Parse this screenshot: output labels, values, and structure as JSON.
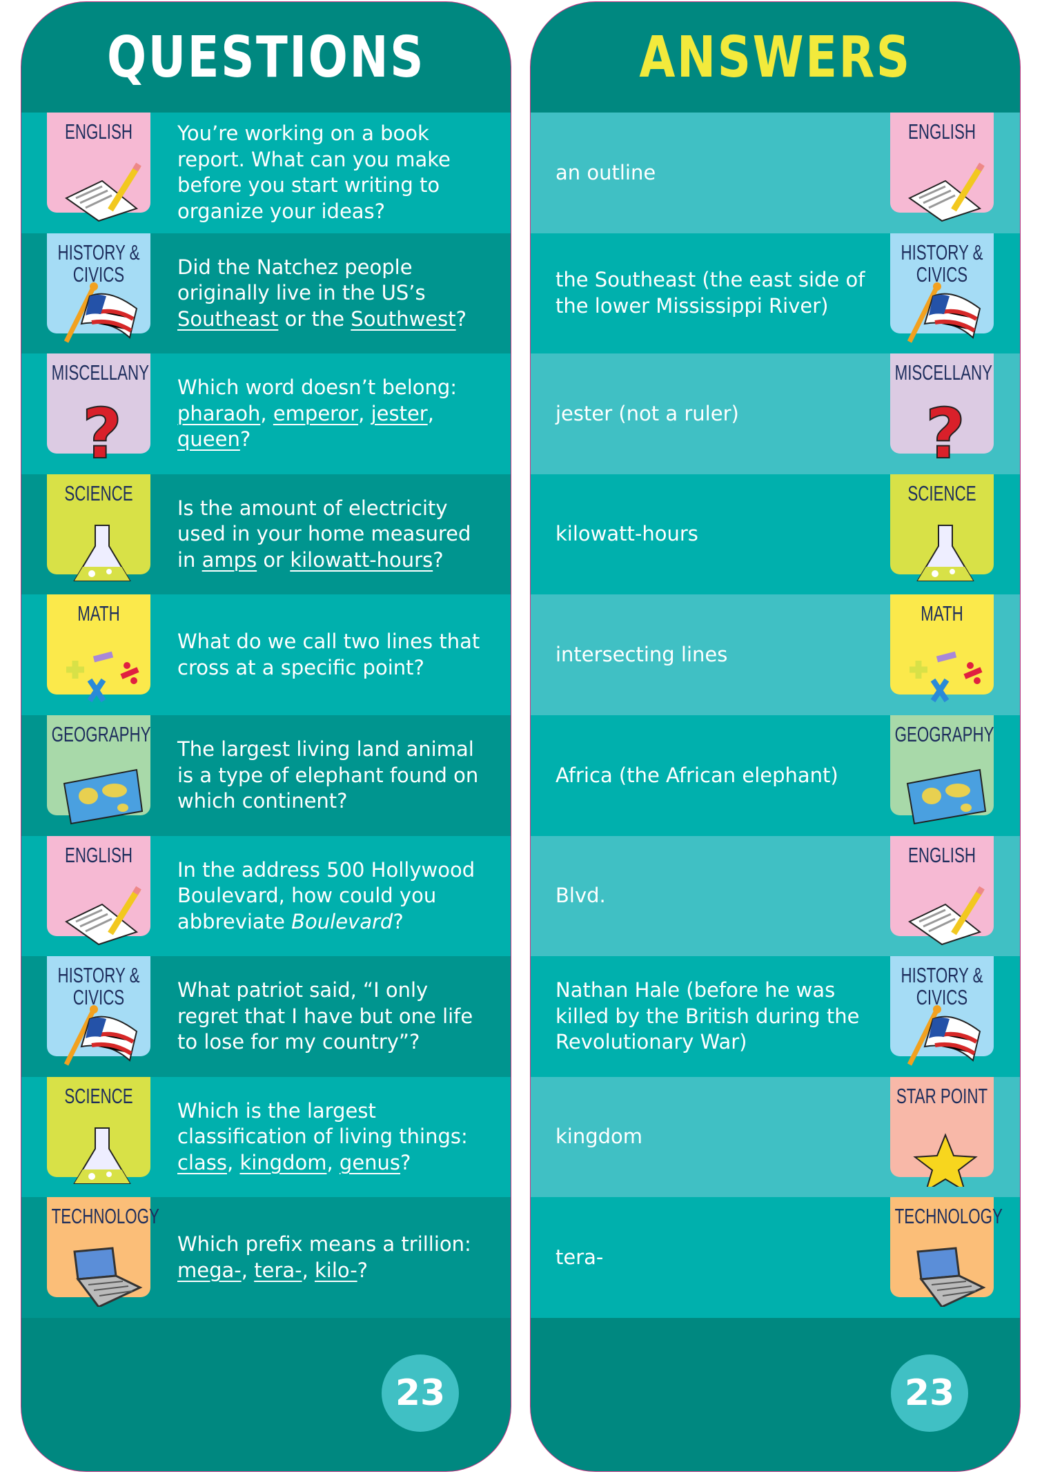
{
  "questions_title": "QUESTIONS",
  "answers_title": "ANSWERS",
  "page_number": "23",
  "colors": {
    "header": "#008880",
    "row_light": "#00b0ad",
    "row_dark": "#00958f",
    "answer_row_light": "#40c0c4",
    "answers_title": "#f2ea3c",
    "label": "#1d2d5c"
  },
  "categories": {
    "english": {
      "label": "ENGLISH",
      "color": "#f6b9d3",
      "icon": "paper-pencil-icon"
    },
    "history": {
      "label": "HISTORY & CIVICS",
      "color": "#a5dcf5",
      "icon": "us-flag-icon"
    },
    "misc": {
      "label": "MISCELLANY",
      "color": "#dccbe3",
      "icon": "question-mark-icon"
    },
    "science": {
      "label": "SCIENCE",
      "color": "#d8e147",
      "icon": "flask-icon"
    },
    "math": {
      "label": "MATH",
      "color": "#fbe94b",
      "icon": "math-symbols-icon"
    },
    "geography": {
      "label": "GEOGRAPHY",
      "color": "#a8d9a9",
      "icon": "world-map-icon"
    },
    "technology": {
      "label": "TECHNOLOGY",
      "color": "#fbbe78",
      "icon": "laptop-icon"
    },
    "star": {
      "label": "STAR POINT",
      "color": "#f8b8a8",
      "icon": "star-icon"
    }
  },
  "questions": [
    {
      "category": "english",
      "parts": [
        {
          "t": "You’re working on a book report. What can you make before you start writing to organize your ideas?"
        }
      ]
    },
    {
      "category": "history",
      "parts": [
        {
          "t": "Did the Natchez people originally live in the US’s "
        },
        {
          "t": "Southeast",
          "u": true
        },
        {
          "t": " or the "
        },
        {
          "t": "Southwest",
          "u": true
        },
        {
          "t": "?"
        }
      ]
    },
    {
      "category": "misc",
      "parts": [
        {
          "t": "Which word doesn’t belong: "
        },
        {
          "t": "pharaoh",
          "u": true
        },
        {
          "t": ", "
        },
        {
          "t": "emperor",
          "u": true
        },
        {
          "t": ", "
        },
        {
          "t": "jester",
          "u": true
        },
        {
          "t": ", "
        },
        {
          "t": "queen",
          "u": true
        },
        {
          "t": "?"
        }
      ]
    },
    {
      "category": "science",
      "parts": [
        {
          "t": "Is the amount of electricity used in your home measured in "
        },
        {
          "t": "amps",
          "u": true
        },
        {
          "t": " or "
        },
        {
          "t": "kilowatt-hours",
          "u": true
        },
        {
          "t": "?"
        }
      ]
    },
    {
      "category": "math",
      "parts": [
        {
          "t": "What do we call two lines that cross at a specific point?"
        }
      ]
    },
    {
      "category": "geography",
      "parts": [
        {
          "t": "The largest living land animal is a type of elephant found on which continent?"
        }
      ]
    },
    {
      "category": "english",
      "parts": [
        {
          "t": "In the address 500 Hollywood Boulevard, how could you abbreviate "
        },
        {
          "t": "Boulevard",
          "i": true
        },
        {
          "t": "?"
        }
      ]
    },
    {
      "category": "history",
      "parts": [
        {
          "t": "What patriot said, “I only regret that I have but one life to lose for my country”?"
        }
      ]
    },
    {
      "category": "science",
      "parts": [
        {
          "t": "Which is the largest classification of living things: "
        },
        {
          "t": "class",
          "u": true
        },
        {
          "t": ", "
        },
        {
          "t": "kingdom",
          "u": true
        },
        {
          "t": ", "
        },
        {
          "t": "genus",
          "u": true
        },
        {
          "t": "?"
        }
      ]
    },
    {
      "category": "technology",
      "parts": [
        {
          "t": "Which prefix means a trillion: "
        },
        {
          "t": "mega-",
          "u": true
        },
        {
          "t": ", "
        },
        {
          "t": "tera-",
          "u": true
        },
        {
          "t": ", "
        },
        {
          "t": "kilo-",
          "u": true
        },
        {
          "t": "?"
        }
      ]
    }
  ],
  "answers": [
    {
      "category": "english",
      "text": "an outline"
    },
    {
      "category": "history",
      "text": "the Southeast (the east side of the lower Mississippi River)"
    },
    {
      "category": "misc",
      "text": "jester (not a ruler)"
    },
    {
      "category": "science",
      "text": "kilowatt-hours"
    },
    {
      "category": "math",
      "text": "intersecting lines"
    },
    {
      "category": "geography",
      "text": "Africa (the African elephant)"
    },
    {
      "category": "english",
      "text": "Blvd."
    },
    {
      "category": "history",
      "text": "Nathan Hale (before he was killed by the British during the Revolutionary War)"
    },
    {
      "category": "star",
      "text": "kingdom"
    },
    {
      "category": "technology",
      "text": "tera-"
    }
  ]
}
